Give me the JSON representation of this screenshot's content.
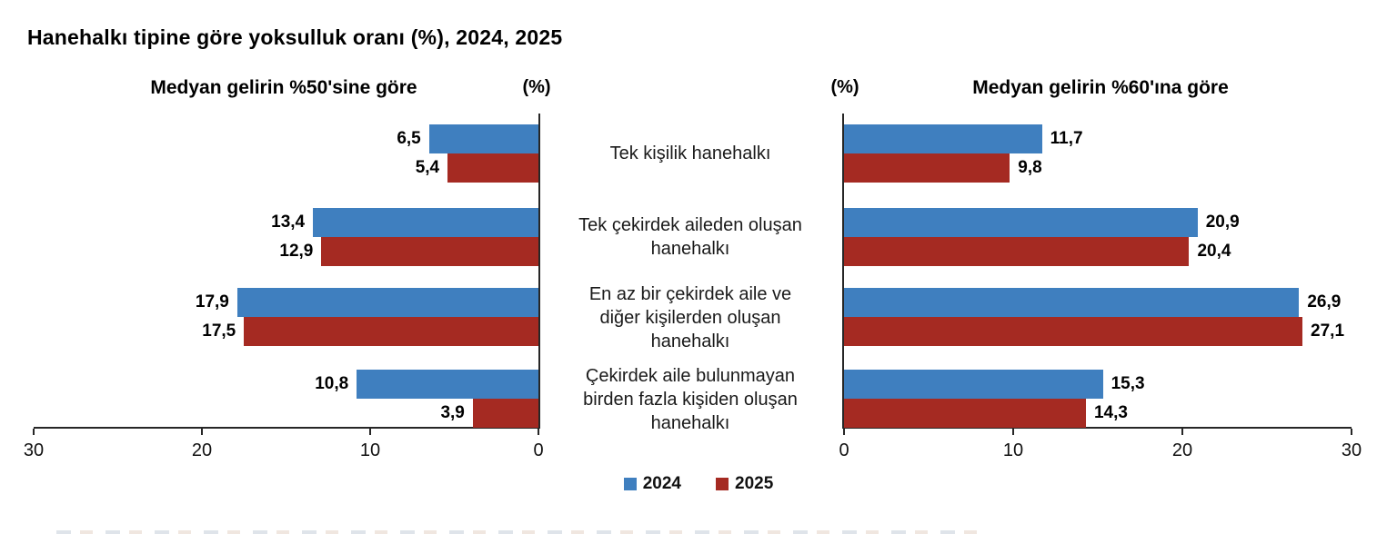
{
  "title": "Hanehalkı tipine göre yoksulluk oranı (%), 2024, 2025",
  "colors": {
    "year2024": "#3F7FBF",
    "year2025": "#A52A22",
    "axis": "#262626"
  },
  "panels": [
    {
      "header": "Medyan gelirin %50'sine göre",
      "unit_label": "(%)"
    },
    {
      "header": "Medyan gelirin %60'ına göre",
      "unit_label": "(%)"
    }
  ],
  "category_lines": [
    [
      "Tek kişilik hanehalkı"
    ],
    [
      "Tek çekirdek aileden oluşan",
      "hanehalkı"
    ],
    [
      "En az bir çekirdek aile ve",
      "diğer kişilerden oluşan",
      "hanehalkı"
    ],
    [
      "Çekirdek aile bulunmayan",
      "birden fazla kişiden oluşan",
      "hanehalkı"
    ]
  ],
  "legend": [
    {
      "label": "2024",
      "color": "#3F7FBF"
    },
    {
      "label": "2025",
      "color": "#A52A22"
    }
  ],
  "chart_data": [
    {
      "type": "bar",
      "orientation": "horizontal",
      "value_axis_direction": "right-to-left",
      "title": "Medyan gelirin %50'sine göre",
      "unit": "%",
      "categories": [
        "Tek kişilik hanehalkı",
        "Tek çekirdek aileden oluşan hanehalkı",
        "En az bir çekirdek aile ve diğer kişilerden oluşan hanehalkı",
        "Çekirdek aile bulunmayan birden fazla kişiden oluşan hanehalkı"
      ],
      "series": [
        {
          "name": "2024",
          "color": "#3F7FBF",
          "values": [
            6.5,
            13.4,
            17.9,
            10.8
          ],
          "labels": [
            "6,5",
            "13,4",
            "17,9",
            "10,8"
          ]
        },
        {
          "name": "2025",
          "color": "#A52A22",
          "values": [
            5.4,
            12.9,
            17.5,
            3.9
          ],
          "labels": [
            "5,4",
            "12,9",
            "17,5",
            "3,9"
          ]
        }
      ],
      "xlim": [
        0,
        30
      ],
      "ticks": [
        "30",
        "20",
        "10",
        "0"
      ],
      "grid": false,
      "legend_position": "bottom-center"
    },
    {
      "type": "bar",
      "orientation": "horizontal",
      "value_axis_direction": "left-to-right",
      "title": "Medyan gelirin %60'ına göre",
      "unit": "%",
      "categories": [
        "Tek kişilik hanehalkı",
        "Tek çekirdek aileden oluşan hanehalkı",
        "En az bir çekirdek aile ve diğer kişilerden oluşan hanehalkı",
        "Çekirdek aile bulunmayan birden fazla kişiden oluşan hanehalkı"
      ],
      "series": [
        {
          "name": "2024",
          "color": "#3F7FBF",
          "values": [
            11.7,
            20.9,
            26.9,
            15.3
          ],
          "labels": [
            "11,7",
            "20,9",
            "26,9",
            "15,3"
          ]
        },
        {
          "name": "2025",
          "color": "#A52A22",
          "values": [
            9.8,
            20.4,
            27.1,
            14.3
          ],
          "labels": [
            "9,8",
            "20,4",
            "27,1",
            "14,3"
          ]
        }
      ],
      "xlim": [
        0,
        30
      ],
      "ticks": [
        "0",
        "10",
        "20",
        "30"
      ],
      "grid": false,
      "legend_position": "bottom-center"
    }
  ]
}
